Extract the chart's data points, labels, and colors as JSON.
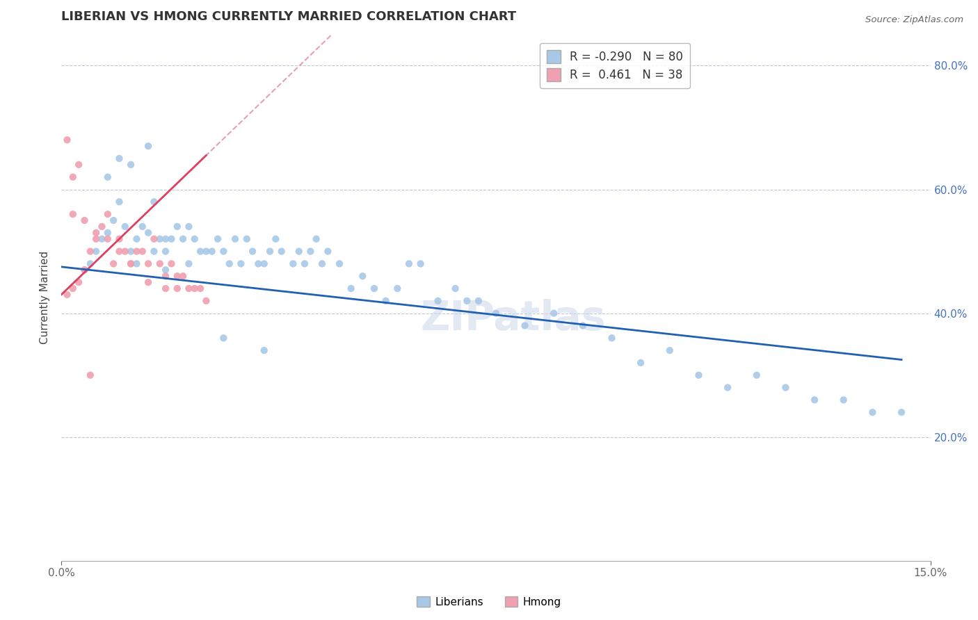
{
  "title": "LIBERIAN VS HMONG CURRENTLY MARRIED CORRELATION CHART",
  "source": "Source: ZipAtlas.com",
  "ylabel": "Currently Married",
  "xlim": [
    0.0,
    0.15
  ],
  "ylim": [
    0.0,
    0.85
  ],
  "x_ticks": [
    0.0,
    0.15
  ],
  "x_tick_labels": [
    "0.0%",
    "15.0%"
  ],
  "y_ticks": [
    0.2,
    0.4,
    0.6,
    0.8
  ],
  "y_tick_labels": [
    "20.0%",
    "40.0%",
    "60.0%",
    "80.0%"
  ],
  "liberian_R": -0.29,
  "liberian_N": 80,
  "hmong_R": 0.461,
  "hmong_N": 38,
  "liberian_color": "#a8c8e8",
  "hmong_color": "#f0a0b0",
  "liberian_line_color": "#2060b0",
  "hmong_line_color": "#e04060",
  "hmong_dash_color": "#e8a0b0",
  "watermark": "ZIPatlas",
  "liberian_x": [
    0.004,
    0.005,
    0.006,
    0.007,
    0.008,
    0.009,
    0.01,
    0.011,
    0.012,
    0.013,
    0.013,
    0.014,
    0.015,
    0.016,
    0.016,
    0.017,
    0.018,
    0.018,
    0.019,
    0.02,
    0.021,
    0.022,
    0.023,
    0.024,
    0.025,
    0.026,
    0.027,
    0.028,
    0.029,
    0.03,
    0.031,
    0.032,
    0.033,
    0.034,
    0.035,
    0.036,
    0.037,
    0.038,
    0.04,
    0.041,
    0.042,
    0.043,
    0.044,
    0.045,
    0.046,
    0.048,
    0.05,
    0.052,
    0.054,
    0.056,
    0.058,
    0.06,
    0.062,
    0.065,
    0.068,
    0.07,
    0.072,
    0.075,
    0.08,
    0.085,
    0.09,
    0.095,
    0.1,
    0.105,
    0.11,
    0.115,
    0.12,
    0.125,
    0.13,
    0.135,
    0.14,
    0.145,
    0.008,
    0.01,
    0.012,
    0.015,
    0.018,
    0.022,
    0.028,
    0.035
  ],
  "liberian_y": [
    0.47,
    0.48,
    0.5,
    0.52,
    0.53,
    0.55,
    0.58,
    0.54,
    0.5,
    0.52,
    0.48,
    0.54,
    0.53,
    0.58,
    0.5,
    0.52,
    0.5,
    0.47,
    0.52,
    0.54,
    0.52,
    0.54,
    0.52,
    0.5,
    0.5,
    0.5,
    0.52,
    0.5,
    0.48,
    0.52,
    0.48,
    0.52,
    0.5,
    0.48,
    0.48,
    0.5,
    0.52,
    0.5,
    0.48,
    0.5,
    0.48,
    0.5,
    0.52,
    0.48,
    0.5,
    0.48,
    0.44,
    0.46,
    0.44,
    0.42,
    0.44,
    0.48,
    0.48,
    0.42,
    0.44,
    0.42,
    0.42,
    0.4,
    0.38,
    0.4,
    0.38,
    0.36,
    0.32,
    0.34,
    0.3,
    0.28,
    0.3,
    0.28,
    0.26,
    0.26,
    0.24,
    0.24,
    0.62,
    0.65,
    0.64,
    0.67,
    0.52,
    0.48,
    0.36,
    0.34
  ],
  "hmong_x": [
    0.001,
    0.002,
    0.003,
    0.004,
    0.005,
    0.006,
    0.007,
    0.008,
    0.009,
    0.01,
    0.011,
    0.012,
    0.013,
    0.014,
    0.015,
    0.016,
    0.017,
    0.018,
    0.019,
    0.02,
    0.021,
    0.022,
    0.023,
    0.024,
    0.025,
    0.002,
    0.003,
    0.004,
    0.006,
    0.008,
    0.01,
    0.012,
    0.015,
    0.018,
    0.02,
    0.001,
    0.002,
    0.005
  ],
  "hmong_y": [
    0.43,
    0.44,
    0.45,
    0.47,
    0.5,
    0.52,
    0.54,
    0.56,
    0.48,
    0.52,
    0.5,
    0.48,
    0.5,
    0.5,
    0.48,
    0.52,
    0.48,
    0.46,
    0.48,
    0.46,
    0.46,
    0.44,
    0.44,
    0.44,
    0.42,
    0.62,
    0.64,
    0.55,
    0.53,
    0.52,
    0.5,
    0.48,
    0.45,
    0.44,
    0.44,
    0.68,
    0.56,
    0.3
  ]
}
